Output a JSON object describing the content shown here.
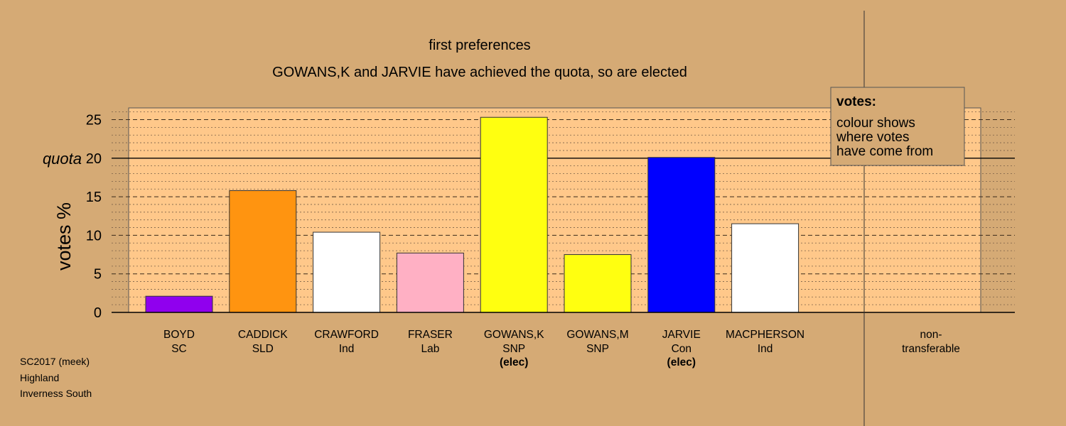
{
  "chart_data": {
    "type": "bar",
    "title": "first preferences",
    "subtitle": "GOWANS,K and JARVIE have achieved the quota, so are elected",
    "ylabel": "votes %",
    "ylim": [
      0,
      26.5
    ],
    "yticks": [
      0,
      5,
      10,
      15,
      20,
      25
    ],
    "quota": {
      "label": "quota",
      "value": 20
    },
    "candidates": [
      {
        "name": "BOYD",
        "party": "SC",
        "status": "",
        "value": 2.1,
        "color": "#9000ee"
      },
      {
        "name": "CADDICK",
        "party": "SLD",
        "status": "",
        "value": 15.8,
        "color": "#ff9410"
      },
      {
        "name": "CRAWFORD",
        "party": "Ind",
        "status": "",
        "value": 10.4,
        "color": "#ffffff"
      },
      {
        "name": "FRASER",
        "party": "Lab",
        "status": "",
        "value": 7.7,
        "color": "#ffb0c4"
      },
      {
        "name": "GOWANS,K",
        "party": "SNP",
        "status": "(elec)",
        "value": 25.3,
        "color": "#ffff10"
      },
      {
        "name": "GOWANS,M",
        "party": "SNP",
        "status": "",
        "value": 7.5,
        "color": "#ffff10"
      },
      {
        "name": "JARVIE",
        "party": "Con",
        "status": "(elec)",
        "value": 20.1,
        "color": "#0000ff"
      },
      {
        "name": "MACPHERSON",
        "party": "Ind",
        "status": "",
        "value": 11.5,
        "color": "#ffffff"
      }
    ],
    "non_transferable": {
      "line1": "non-",
      "line2": "transferable",
      "value": 0
    },
    "legend": {
      "title": "votes:",
      "lines": [
        "colour shows",
        "where votes",
        "have come from"
      ],
      "placement": "top-right"
    },
    "colors": {
      "background": "#d5aa75",
      "plot_area": "#ffc88a",
      "legend_box": "#d5aa75"
    }
  },
  "footer": {
    "line1": "SC2017 (meek)",
    "line2": "Highland",
    "line3": "Inverness South"
  }
}
